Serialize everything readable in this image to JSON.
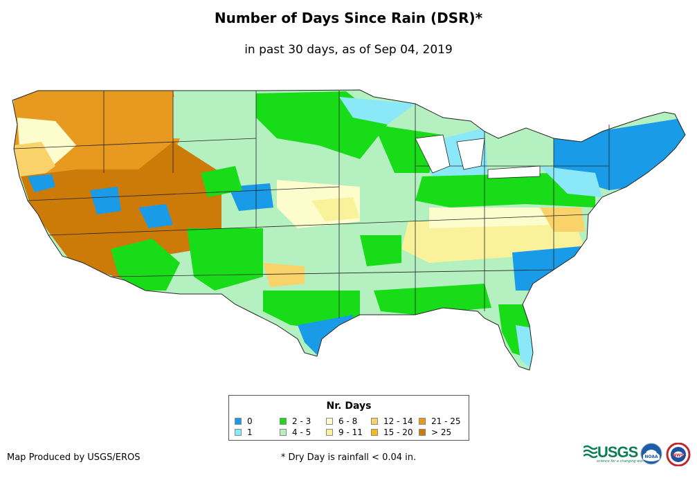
{
  "header": {
    "title": "Number of Days Since Rain (DSR)*",
    "subtitle": "in past 30 days, as of Sep 04, 2019"
  },
  "legend": {
    "title": "Nr. Days",
    "items": [
      {
        "label": "0",
        "color": "#1a9be8"
      },
      {
        "label": "1",
        "color": "#8ae8f8"
      },
      {
        "label": "2 - 3",
        "color": "#18dc18"
      },
      {
        "label": "4 - 5",
        "color": "#b4f0c0"
      },
      {
        "label": "6 - 8",
        "color": "#fcfccc"
      },
      {
        "label": "9 - 11",
        "color": "#faf29a"
      },
      {
        "label": "12 - 14",
        "color": "#fad26a"
      },
      {
        "label": "15 - 20",
        "color": "#f8ba12"
      },
      {
        "label": "21 - 25",
        "color": "#e89a20"
      },
      {
        "label": "> 25",
        "color": "#cc7a08"
      }
    ]
  },
  "footer": {
    "credit": "Map Produced by USGS/EROS",
    "footnote": "* Dry Day is rainfall < 0.04 in.",
    "logos": [
      {
        "name": "usgs-logo",
        "text": "USGS",
        "tagline": "science for a changing world"
      },
      {
        "name": "noaa-logo",
        "text": "NOAA"
      },
      {
        "name": "nws-logo",
        "text": "NWS"
      }
    ]
  }
}
